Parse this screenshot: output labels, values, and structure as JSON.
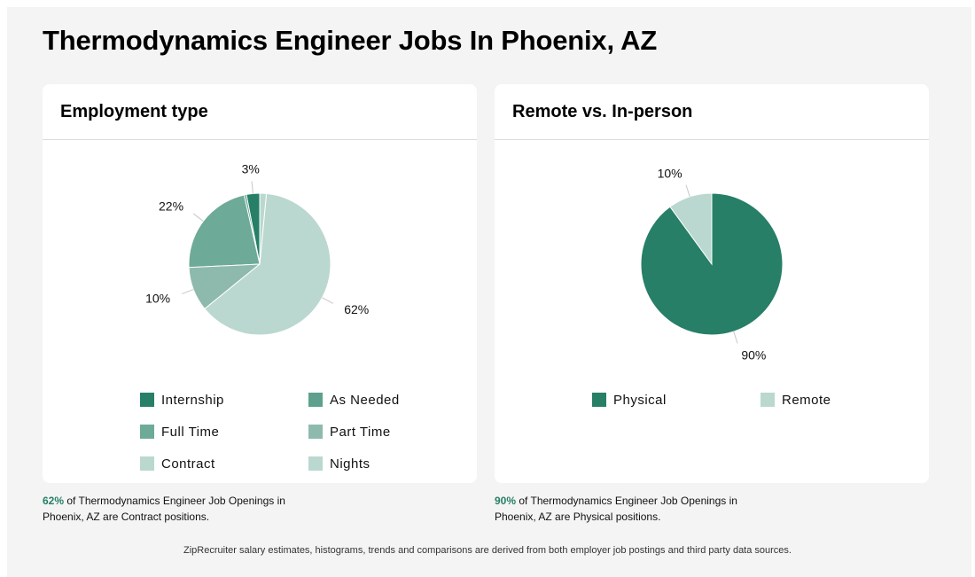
{
  "page": {
    "title": "Thermodynamics Engineer Jobs In Phoenix, AZ",
    "footer": "ZipRecruiter salary estimates, histograms, trends and comparisons are derived from both employer job postings and third party data sources."
  },
  "cards": {
    "employment": {
      "title": "Employment type",
      "summary_pct": "62%",
      "summary_text": " of Thermodynamics Engineer Job Openings in Phoenix, AZ are Contract positions."
    },
    "remote": {
      "title": "Remote vs. In-person",
      "summary_pct": "90%",
      "summary_text": " of Thermodynamics Engineer Job Openings in Phoenix, AZ are Physical positions."
    }
  },
  "chart_data": [
    {
      "type": "pie",
      "title": "Employment type",
      "categories": [
        "Internship",
        "As Needed",
        "Full Time",
        "Part Time",
        "Contract",
        "Nights"
      ],
      "values": [
        3,
        0.5,
        22,
        10,
        62,
        1.5
      ],
      "labels": [
        "3%",
        "",
        "22%",
        "10%",
        "62%",
        ""
      ],
      "colors": [
        "#267f66",
        "#5ea08d",
        "#6eaa98",
        "#8ebaad",
        "#bad8cf",
        "#bad8cf"
      ],
      "start_angle_deg": 0,
      "direction": "counterclockwise",
      "legend_position": "bottom"
    },
    {
      "type": "pie",
      "title": "Remote vs. In-person",
      "categories": [
        "Physical",
        "Remote"
      ],
      "values": [
        90,
        10
      ],
      "labels": [
        "90%",
        "10%"
      ],
      "colors": [
        "#267f66",
        "#bad8cf"
      ],
      "start_angle_deg": 0,
      "direction": "clockwise",
      "legend_position": "bottom"
    }
  ]
}
